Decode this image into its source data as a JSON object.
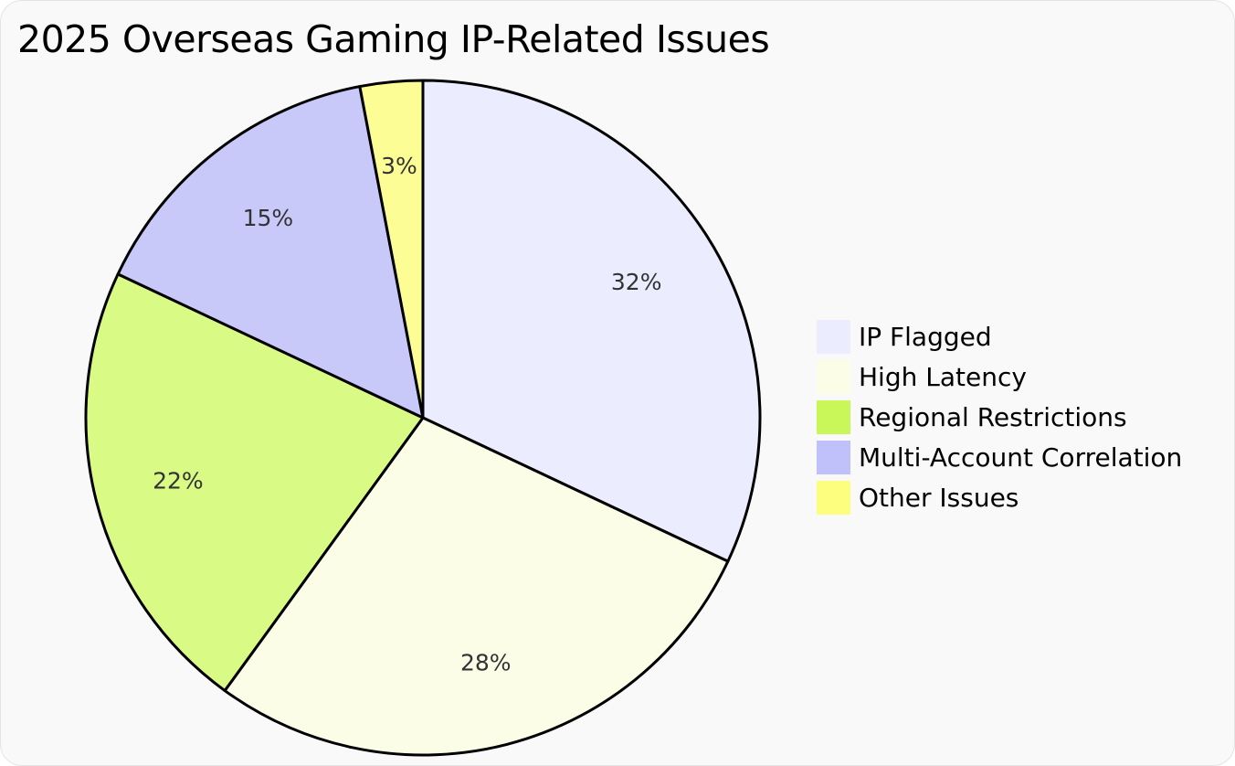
{
  "chart_data": {
    "type": "pie",
    "title": "2025 Overseas Gaming IP-Related Issues",
    "slices": [
      {
        "label": "IP Flagged",
        "value": 32,
        "display": "32%",
        "color": "#ececff"
      },
      {
        "label": "High Latency",
        "value": 28,
        "display": "28%",
        "color": "#fcfde6"
      },
      {
        "label": "Regional Restrictions",
        "value": 22,
        "display": "22%",
        "color": "#d9fb86"
      },
      {
        "label": "Multi-Account Correlation",
        "value": 15,
        "display": "15%",
        "color": "#c8c8f9"
      },
      {
        "label": "Other Issues",
        "value": 3,
        "display": "3%",
        "color": "#fdfd96"
      }
    ],
    "legend_swatch_colors": [
      "#ececff",
      "#fcfde6",
      "#c9f75a",
      "#c0c0fb",
      "#fdfd7e"
    ],
    "legend_position": "right",
    "start": "top, clockwise"
  }
}
